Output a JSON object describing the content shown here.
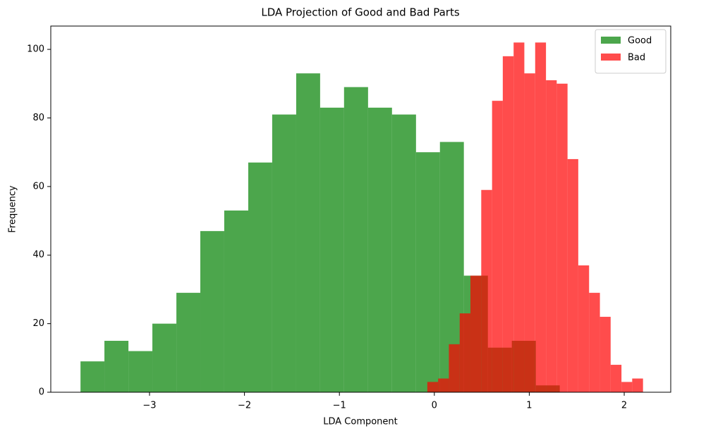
{
  "chart_data": {
    "type": "histogram",
    "title": "LDA Projection of Good and Bad Parts",
    "x_label": "LDA Component",
    "y_label": "Frequency",
    "series": [
      {
        "name": "Good",
        "color": "#008000",
        "bins": [
          -3.727,
          -3.475,
          -3.222,
          -2.97,
          -2.717,
          -2.465,
          -2.213,
          -1.96,
          -1.708,
          -1.455,
          -1.203,
          -0.951,
          -0.698,
          -0.446,
          -0.193,
          0.059,
          0.311,
          0.564,
          0.816,
          1.069,
          1.321
        ],
        "values": [
          9,
          15,
          12,
          20,
          29,
          47,
          53,
          67,
          81,
          93,
          83,
          89,
          83,
          81,
          70,
          73,
          34,
          13,
          15,
          2
        ]
      },
      {
        "name": "Bad",
        "color": "#ff0000",
        "bins": [
          -0.074,
          0.04,
          0.153,
          0.267,
          0.38,
          0.494,
          0.608,
          0.721,
          0.835,
          0.948,
          1.062,
          1.176,
          1.289,
          1.403,
          1.516,
          1.63,
          1.744,
          1.857,
          1.971,
          2.084,
          2.198
        ],
        "values": [
          3,
          4,
          14,
          23,
          34,
          59,
          85,
          98,
          102,
          93,
          102,
          91,
          90,
          68,
          37,
          29,
          22,
          8,
          3,
          4
        ]
      }
    ],
    "opacity": 0.7,
    "xlim": [
      -4.04,
      2.49
    ],
    "xticks": [
      {
        "value": -3,
        "label": "−3"
      },
      {
        "value": -2,
        "label": "−2"
      },
      {
        "value": -1,
        "label": "−1"
      },
      0,
      1,
      2
    ],
    "ylim": [
      0,
      106.8
    ],
    "yticks": [
      0,
      20,
      40,
      60,
      80,
      100
    ],
    "legend": "upper right"
  }
}
